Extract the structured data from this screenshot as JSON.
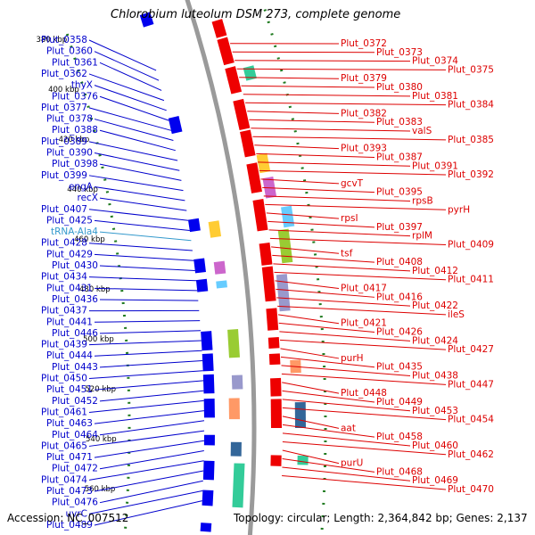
{
  "title": "Chlorobium luteolum DSM 273, complete genome",
  "footer": {
    "accession": "Accession: NC_007512",
    "summary": "Topology: circular; Length: 2,364,842 bp; Genes: 2,137"
  },
  "scale_ticks": [
    "380 kbp",
    "400 kbp",
    "420 kbp",
    "440 kbp",
    "460 kbp",
    "480 kbp",
    "500 kbp",
    "520 kbp",
    "540 kbp",
    "560 kbp"
  ],
  "left_labels": [
    "Plut_0358",
    "Plut_0360",
    "Plut_0361",
    "Plut_0362",
    "thyX",
    "Plut_0376",
    "Plut_0377",
    "Plut_0378",
    "Plut_0388",
    "Plut_0389",
    "Plut_0390",
    "Plut_0398",
    "Plut_0399",
    "engA",
    "recX",
    "Plut_0407",
    "Plut_0425",
    "tRNA-Ala4",
    "Plut_0428",
    "Plut_0429",
    "Plut_0430",
    "Plut_0434",
    "Plut_0431",
    "Plut_0436",
    "Plut_0437",
    "Plut_0441",
    "Plut_0446",
    "Plut_0439",
    "Plut_0444",
    "Plut_0443",
    "Plut_0450",
    "Plut_0451",
    "Plut_0452",
    "Plut_0461",
    "Plut_0463",
    "Plut_0464",
    "Plut_0465",
    "Plut_0471",
    "Plut_0472",
    "Plut_0474",
    "Plut_0473",
    "Plut_0476",
    "uvrC",
    "Plut_0489"
  ],
  "right_labels": [
    "Plut_0372",
    "Plut_0373",
    "Plut_0374",
    "Plut_0375",
    "Plut_0379",
    "Plut_0380",
    "Plut_0381",
    "Plut_0384",
    "Plut_0382",
    "Plut_0383",
    "valS",
    "Plut_0385",
    "Plut_0393",
    "Plut_0387",
    "Plut_0391",
    "Plut_0392",
    "gcvT",
    "Plut_0395",
    "rpsB",
    "pyrH",
    "rpsI",
    "Plut_0397",
    "rplM",
    "Plut_0409",
    "tsf",
    "Plut_0408",
    "Plut_0412",
    "Plut_0411",
    "Plut_0417",
    "Plut_0416",
    "Plut_0422",
    "ileS",
    "Plut_0421",
    "Plut_0426",
    "Plut_0424",
    "Plut_0427",
    "purH",
    "Plut_0435",
    "Plut_0438",
    "Plut_0447",
    "Plut_0448",
    "Plut_0449",
    "Plut_0453",
    "Plut_0454",
    "aat",
    "Plut_0458",
    "Plut_0460",
    "Plut_0462",
    "purU",
    "Plut_0468",
    "Plut_0469",
    "Plut_0470"
  ],
  "colors": {
    "left_label": "#0000cc",
    "right_label": "#dd0000",
    "trna_label": "#3399cc",
    "forward_feature": "#0000ee",
    "reverse_feature": "#ee0000",
    "backbone": "#9a9a9a",
    "tick_ring": "#1f7a1f"
  }
}
